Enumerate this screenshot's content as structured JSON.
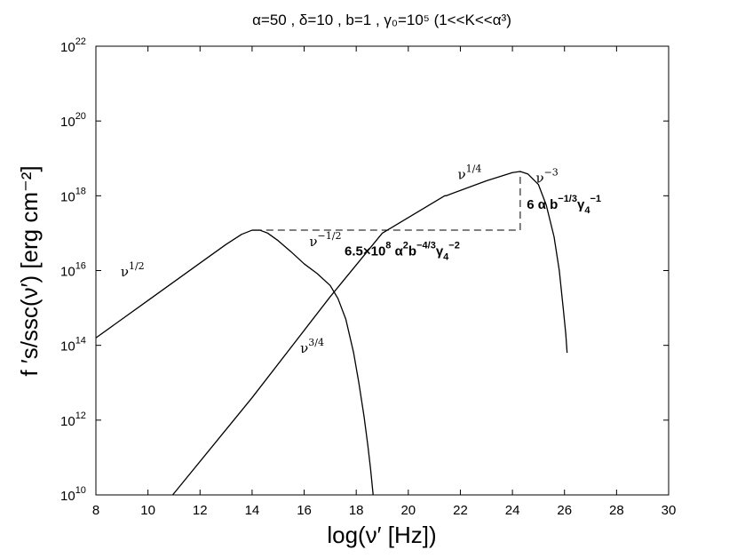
{
  "chart_data": {
    "type": "line",
    "title": "α=50 , δ=10 , b=1 , γ₀=10⁵ (1<<K<<α³)",
    "xlabel": "log(ν′  [Hz])",
    "ylabel": "f ′s/ssc(ν′)  [erg cm⁻²]",
    "xlim": [
      8,
      30
    ],
    "ylim_log10": [
      10,
      22
    ],
    "y_scale": "log",
    "grid": false,
    "x_ticks": [
      8,
      10,
      12,
      14,
      16,
      18,
      20,
      22,
      24,
      26,
      28,
      30
    ],
    "y_ticks": [
      {
        "exp": 10,
        "label": "10",
        "sup": "10"
      },
      {
        "exp": 12,
        "label": "10",
        "sup": "12"
      },
      {
        "exp": 14,
        "label": "10",
        "sup": "14"
      },
      {
        "exp": 16,
        "label": "10",
        "sup": "16"
      },
      {
        "exp": 18,
        "label": "10",
        "sup": "18"
      },
      {
        "exp": 20,
        "label": "10",
        "sup": "20"
      },
      {
        "exp": 22,
        "label": "10",
        "sup": "22"
      }
    ],
    "series": [
      {
        "note": "synchrotron component",
        "x": [
          8.0,
          10.0,
          12.0,
          13.0,
          13.6,
          14.0,
          14.3,
          14.6,
          15.0,
          15.5,
          16.0,
          16.5,
          17.0,
          17.3,
          17.6,
          17.9,
          18.1,
          18.3,
          18.45,
          18.55,
          18.65
        ],
        "log10_y": [
          14.2,
          15.2,
          16.2,
          16.7,
          16.97,
          17.08,
          17.08,
          17.0,
          16.8,
          16.5,
          16.18,
          15.92,
          15.6,
          15.25,
          14.7,
          13.8,
          13.0,
          12.1,
          11.3,
          10.7,
          10.0
        ]
      },
      {
        "note": "SSC component",
        "x": [
          10.95,
          14.0,
          17.0,
          19.0,
          21.4,
          21.45,
          23.0,
          24.0,
          24.3,
          24.6,
          25.0,
          25.3,
          25.6,
          25.8,
          25.95,
          26.05,
          26.1
        ],
        "log10_y": [
          10.0,
          12.6,
          15.3,
          17.0,
          18.0,
          18.0,
          18.4,
          18.62,
          18.65,
          18.58,
          18.3,
          17.75,
          16.9,
          16.0,
          15.0,
          14.3,
          13.8
        ]
      }
    ],
    "guides": [
      {
        "x": [
          14.1,
          24.3
        ],
        "log10_y": [
          17.08,
          17.08
        ],
        "style": "dashed"
      },
      {
        "x": [
          24.3,
          24.3
        ],
        "log10_y": [
          17.08,
          18.65
        ],
        "style": "dashed"
      }
    ],
    "annotations": [
      {
        "base": "ν",
        "sup": "1/2",
        "x": 8.95,
        "log10_y": 15.85,
        "style": "greek"
      },
      {
        "base": "ν",
        "sup": "3/4",
        "x": 15.85,
        "log10_y": 13.8,
        "style": "greek"
      },
      {
        "base": "ν",
        "sup": "−1/2",
        "x": 16.2,
        "log10_y": 16.65,
        "style": "greek"
      },
      {
        "base": "ν",
        "sup": "1/4",
        "x": 21.9,
        "log10_y": 18.45,
        "style": "greek"
      },
      {
        "base": "ν",
        "sup": "−3",
        "x": 24.9,
        "log10_y": 18.35,
        "style": "greek"
      },
      {
        "text": "6.5×10",
        "sup": "8",
        "extra": " α",
        "sup2": "2",
        "extra2": "b",
        "sup3": "−4/3",
        "extra3": "γ",
        "sub4": "4",
        "sup4": "−2",
        "x": 17.55,
        "log10_y": 16.4,
        "style": "bold"
      },
      {
        "text": "6 α b",
        "sup": "−1/3",
        "extra": "γ",
        "sub2": "4",
        "sup2": "−1",
        "x": 24.55,
        "log10_y": 17.65,
        "style": "bold"
      }
    ]
  }
}
